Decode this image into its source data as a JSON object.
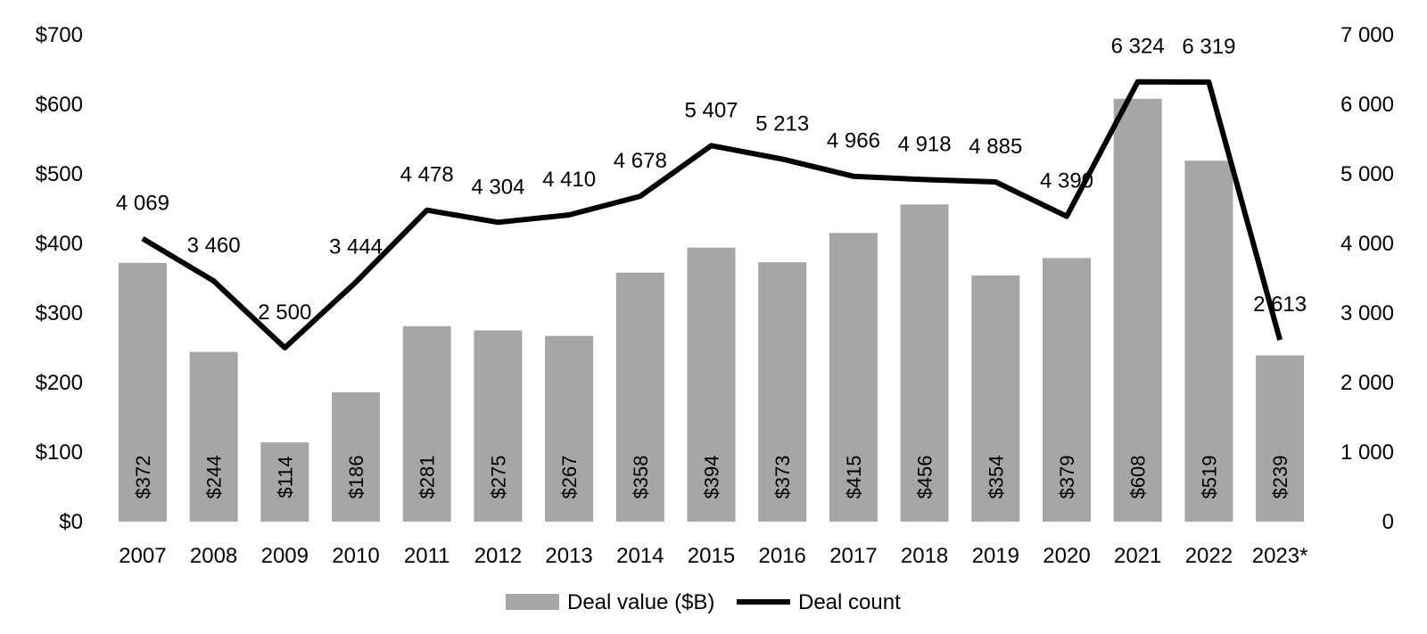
{
  "colors": {
    "bar": "#a6a6a6",
    "line": "#000000",
    "background": "#ffffff"
  },
  "chart_data": {
    "type": "bar+line",
    "categories": [
      "2007",
      "2008",
      "2009",
      "2010",
      "2011",
      "2012",
      "2013",
      "2014",
      "2015",
      "2016",
      "2017",
      "2018",
      "2019",
      "2020",
      "2021",
      "2022",
      "2023*"
    ],
    "series": [
      {
        "name": "Deal value ($B)",
        "type": "bar",
        "axis": "left",
        "values": [
          372,
          244,
          114,
          186,
          281,
          275,
          267,
          358,
          394,
          373,
          415,
          456,
          354,
          379,
          608,
          519,
          239
        ],
        "labels": [
          "$372",
          "$244",
          "$114",
          "$186",
          "$281",
          "$275",
          "$267",
          "$358",
          "$394",
          "$373",
          "$415",
          "$456",
          "$354",
          "$379",
          "$608",
          "$519",
          "$239"
        ]
      },
      {
        "name": "Deal count",
        "type": "line",
        "axis": "right",
        "values": [
          4069,
          3460,
          2500,
          3444,
          4478,
          4304,
          4410,
          4678,
          5407,
          5213,
          4966,
          4918,
          4885,
          4390,
          6324,
          6319,
          2613
        ],
        "labels": [
          "4 069",
          "3 460",
          "2 500",
          "3 444",
          "4 478",
          "4 304",
          "4 410",
          "4 678",
          "5 407",
          "5 213",
          "4 966",
          "4 918",
          "4 885",
          "4 390",
          "6 324",
          "6 319",
          "2 613"
        ]
      }
    ],
    "y_left": {
      "range": [
        0,
        700
      ],
      "ticks": [
        0,
        100,
        200,
        300,
        400,
        500,
        600,
        700
      ],
      "tick_labels": [
        "$0",
        "$100",
        "$200",
        "$300",
        "$400",
        "$500",
        "$600",
        "$700"
      ]
    },
    "y_right": {
      "range": [
        0,
        7000
      ],
      "ticks": [
        0,
        1000,
        2000,
        3000,
        4000,
        5000,
        6000,
        7000
      ],
      "tick_labels": [
        "0",
        "1 000",
        "2 000",
        "3 000",
        "4 000",
        "5 000",
        "6 000",
        "7 000"
      ]
    },
    "grid": false,
    "legend_position": "bottom"
  }
}
